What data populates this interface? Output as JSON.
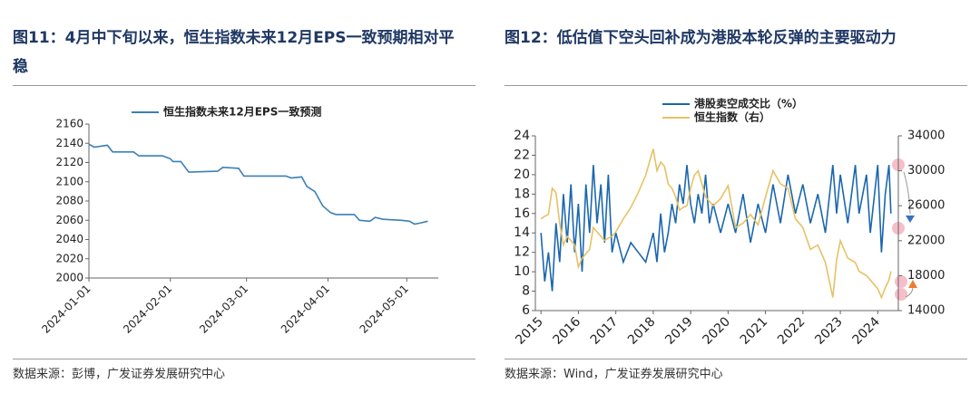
{
  "chart_data": [
    {
      "type": "line",
      "title": "图11：4月中下旬以来，恒生指数未来12月EPS一致预期相对平稳",
      "source": "数据来源：彭博，广发证券发展研究中心",
      "x": [
        "2024-01-01",
        "2024-01-03",
        "2024-01-08",
        "2024-01-10",
        "2024-01-18",
        "2024-01-20",
        "2024-01-29",
        "2024-02-01",
        "2024-02-02",
        "2024-02-05",
        "2024-02-08",
        "2024-02-19",
        "2024-02-21",
        "2024-02-27",
        "2024-02-29",
        "2024-03-16",
        "2024-03-18",
        "2024-03-22",
        "2024-03-24",
        "2024-03-27",
        "2024-03-30",
        "2024-04-02",
        "2024-04-04",
        "2024-04-11",
        "2024-04-13",
        "2024-04-17",
        "2024-04-19",
        "2024-04-22",
        "2024-04-29",
        "2024-05-02",
        "2024-05-04",
        "2024-05-06",
        "2024-05-09"
      ],
      "xlim": [
        "2024-01-01",
        "2024-05-13"
      ],
      "xticks": [
        "2024-01-01",
        "2024-02-01",
        "2024-03-01",
        "2024-04-01",
        "2024-05-01"
      ],
      "series": [
        {
          "name": "恒生指数未来12月EPS一致预测",
          "color": "#3a80b6",
          "values": [
            2139,
            2136,
            2138,
            2131,
            2131,
            2127,
            2127,
            2124,
            2121,
            2121,
            2110,
            2111,
            2115,
            2114,
            2106,
            2106,
            2104,
            2105,
            2095,
            2090,
            2075,
            2068,
            2066,
            2066,
            2060,
            2059,
            2063,
            2061,
            2060,
            2059,
            2056,
            2057,
            2059
          ]
        }
      ],
      "ylim": [
        2000,
        2160
      ],
      "yticks": [
        2000,
        2020,
        2040,
        2060,
        2080,
        2100,
        2120,
        2140,
        2160
      ],
      "legend": "top"
    },
    {
      "type": "line",
      "title": "图12：低估值下空头回补成为港股本轮反弹的主要驱动力",
      "source": "数据来源：Wind，广发证券发展研究中心",
      "x": [
        2015.0,
        2015.1,
        2015.2,
        2015.3,
        2015.4,
        2015.5,
        2015.6,
        2015.7,
        2015.8,
        2015.9,
        2016.0,
        2016.1,
        2016.2,
        2016.3,
        2016.4,
        2016.5,
        2016.6,
        2016.7,
        2016.8,
        2016.9,
        2017.0,
        2017.2,
        2017.4,
        2017.6,
        2017.8,
        2018.0,
        2018.1,
        2018.2,
        2018.3,
        2018.4,
        2018.5,
        2018.6,
        2018.7,
        2018.8,
        2018.9,
        2019.0,
        2019.1,
        2019.2,
        2019.3,
        2019.4,
        2019.5,
        2019.6,
        2019.8,
        2020.0,
        2020.2,
        2020.4,
        2020.6,
        2020.8,
        2021.0,
        2021.2,
        2021.4,
        2021.6,
        2021.8,
        2022.0,
        2022.2,
        2022.4,
        2022.6,
        2022.8,
        2022.9,
        2023.0,
        2023.2,
        2023.4,
        2023.5,
        2023.7,
        2023.8,
        2024.0,
        2024.1,
        2024.2,
        2024.3,
        2024.35
      ],
      "xlim": [
        2014.85,
        2024.55
      ],
      "xticks": [
        2015,
        2016,
        2017,
        2018,
        2019,
        2020,
        2021,
        2022,
        2023,
        2024
      ],
      "series": [
        {
          "name": "港股卖空成交比（%）",
          "color": "#1b67ad",
          "values": [
            14,
            9,
            12,
            8,
            15,
            11,
            18,
            13,
            19,
            12,
            17,
            10,
            19,
            14,
            21,
            15,
            19,
            13,
            20,
            12,
            14,
            11,
            13,
            12,
            11,
            14,
            11,
            16,
            12,
            14,
            17,
            15,
            19,
            17,
            21,
            17,
            15,
            18,
            16,
            20,
            15,
            17,
            14,
            17,
            14,
            18,
            13,
            17,
            14,
            19,
            15,
            20,
            16,
            19,
            15,
            18,
            14,
            21,
            16,
            20,
            15,
            21,
            16,
            20,
            14,
            21,
            12,
            18,
            21,
            16
          ]
        },
        {
          "name": "恒生指数（右）",
          "color": "#e6c266",
          "axis": "y2",
          "values": [
            24500,
            24800,
            25000,
            28000,
            27500,
            24000,
            21500,
            22500,
            22000,
            21500,
            19000,
            20000,
            20500,
            21000,
            23500,
            23000,
            22500,
            22000,
            22300,
            22500,
            23000,
            24500,
            25800,
            27500,
            29500,
            32500,
            30000,
            31000,
            30500,
            28500,
            28000,
            27000,
            25500,
            25800,
            26000,
            28000,
            29500,
            30000,
            28500,
            27000,
            26500,
            26000,
            26800,
            28300,
            23500,
            24000,
            25000,
            23800,
            27000,
            30000,
            28500,
            28000,
            24500,
            23500,
            21000,
            21500,
            19500,
            15500,
            19800,
            22000,
            20000,
            19500,
            18500,
            18000,
            17500,
            16500,
            15500,
            16600,
            17500,
            18500
          ]
        }
      ],
      "ylim": [
        6,
        24
      ],
      "yticks": [
        6,
        8,
        10,
        12,
        14,
        16,
        18,
        20,
        22,
        24
      ],
      "y2lim": [
        14000,
        34000
      ],
      "y2ticks": [
        14000,
        18000,
        22000,
        26000,
        30000,
        34000
      ],
      "legend": "top"
    }
  ]
}
